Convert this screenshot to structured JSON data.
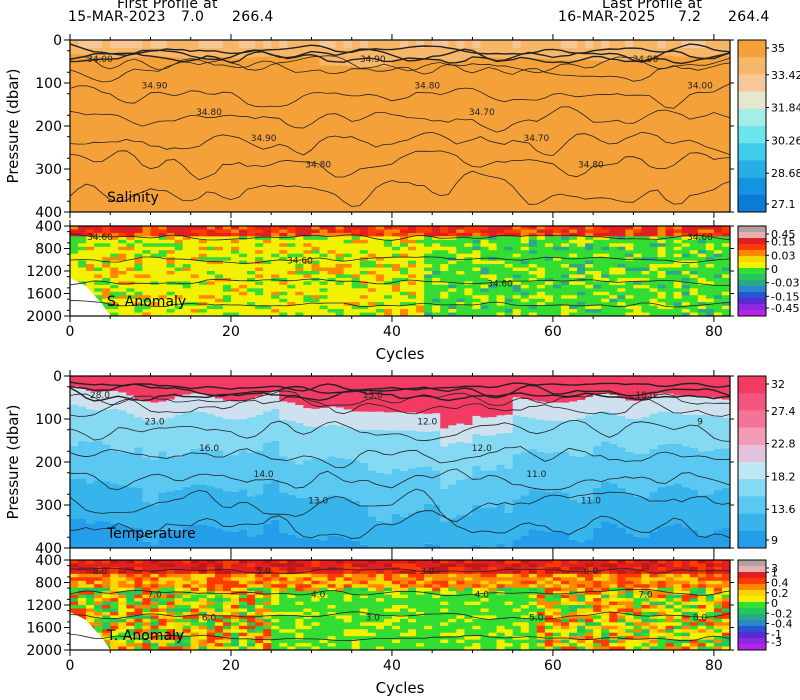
{
  "header": {
    "first_title": "First Profile at",
    "first_date": "15-MAR-2023",
    "first_lat": "7.0",
    "first_lon": "266.4",
    "last_title": "Last Profile at",
    "last_date": "16-MAR-2025",
    "last_lat": "7.2",
    "last_lon": "264.4"
  },
  "x_axis": {
    "label": "Cycles",
    "range": [
      0,
      82
    ],
    "ticks": [
      "0",
      "20",
      "40",
      "60",
      "80"
    ]
  },
  "chart_data": [
    {
      "type": "heatmap",
      "title": "Salinity",
      "ylabel": "Pressure (dbar)",
      "ylim": [
        0,
        400
      ],
      "y_ticks": [
        "0",
        "100",
        "200",
        "300",
        "400"
      ],
      "xlim": [
        0,
        82
      ],
      "colorbar": {
        "labels": [
          "35",
          "33.42",
          "31.84",
          "30.26",
          "28.68",
          "27.1"
        ],
        "colors": [
          "#f5a13a",
          "#f7b768",
          "#f8c797",
          "#e3e8cf",
          "#a5ede9",
          "#6ee4ec",
          "#40cdea",
          "#26aee5",
          "#1693e0",
          "#0c7ad9"
        ]
      },
      "contour_labels": [
        "34.00",
        "34.90",
        "34.80",
        "34.90",
        "34.80",
        "34.90",
        "34.80",
        "34.70",
        "34.70",
        "34.80",
        "34.90",
        "34.00"
      ]
    },
    {
      "type": "heatmap",
      "title": "S. Anomaly",
      "ylim": [
        400,
        2000
      ],
      "y_ticks": [
        "400",
        "800",
        "1200",
        "1600",
        "2000"
      ],
      "xlim": [
        0,
        82
      ],
      "colorbar": {
        "labels": [
          "0.45",
          "0.15",
          "0.03",
          "0",
          "-0.03",
          "-0.15",
          "-0.45"
        ],
        "colors": [
          "#b4a0a0",
          "#e5b0b4",
          "#e02020",
          "#ff3a00",
          "#ff8800",
          "#ffd500",
          "#f2f200",
          "#33dd33",
          "#22c85a",
          "#2aa888",
          "#2888c8",
          "#2255d8",
          "#5a2ad0",
          "#8a2ae0",
          "#b822e8"
        ]
      },
      "contour_labels": [
        "34.60",
        "34.60",
        "34.60",
        "34.60"
      ]
    },
    {
      "type": "heatmap",
      "title": "Temperature",
      "ylabel": "Pressure (dbar)",
      "ylim": [
        0,
        400
      ],
      "y_ticks": [
        "0",
        "100",
        "200",
        "300",
        "400"
      ],
      "xlim": [
        0,
        82
      ],
      "colorbar": {
        "labels": [
          "32",
          "27.4",
          "22.8",
          "18.2",
          "13.6",
          "9"
        ],
        "colors": [
          "#f23a63",
          "#f2557d",
          "#f27496",
          "#f29bb6",
          "#e3c3da",
          "#bfe6f4",
          "#86d9f2",
          "#5ac8f0",
          "#38b4ec",
          "#259eea"
        ]
      },
      "contour_labels": [
        "28.0",
        "23.0",
        "16.0",
        "14.0",
        "13.0",
        "13.0",
        "12.0",
        "12.0",
        "11.0",
        "11.0",
        "10.0",
        "9"
      ]
    },
    {
      "type": "heatmap",
      "title": "T. Anomaly",
      "ylim": [
        400,
        2000
      ],
      "y_ticks": [
        "400",
        "800",
        "1200",
        "1600",
        "2000"
      ],
      "xlim": [
        0,
        82
      ],
      "colorbar": {
        "labels": [
          "3",
          "1",
          "0.4",
          "0.2",
          "0",
          "-0.2",
          "-0.4",
          "-1",
          "-3"
        ],
        "colors": [
          "#b4a0a0",
          "#e5b0b4",
          "#e02020",
          "#ff3a00",
          "#ff8800",
          "#ffd500",
          "#f2f200",
          "#33dd33",
          "#22c85a",
          "#2aa888",
          "#2888c8",
          "#2255d8",
          "#5a2ad0",
          "#8a2ae0",
          "#b822e8"
        ]
      },
      "contour_labels": [
        "8.0",
        "7.0",
        "6.0",
        "5.0",
        "4.0",
        "3.0",
        "3.0",
        "4.0",
        "5.0",
        "6.0",
        "7.0",
        "8.0"
      ]
    }
  ]
}
